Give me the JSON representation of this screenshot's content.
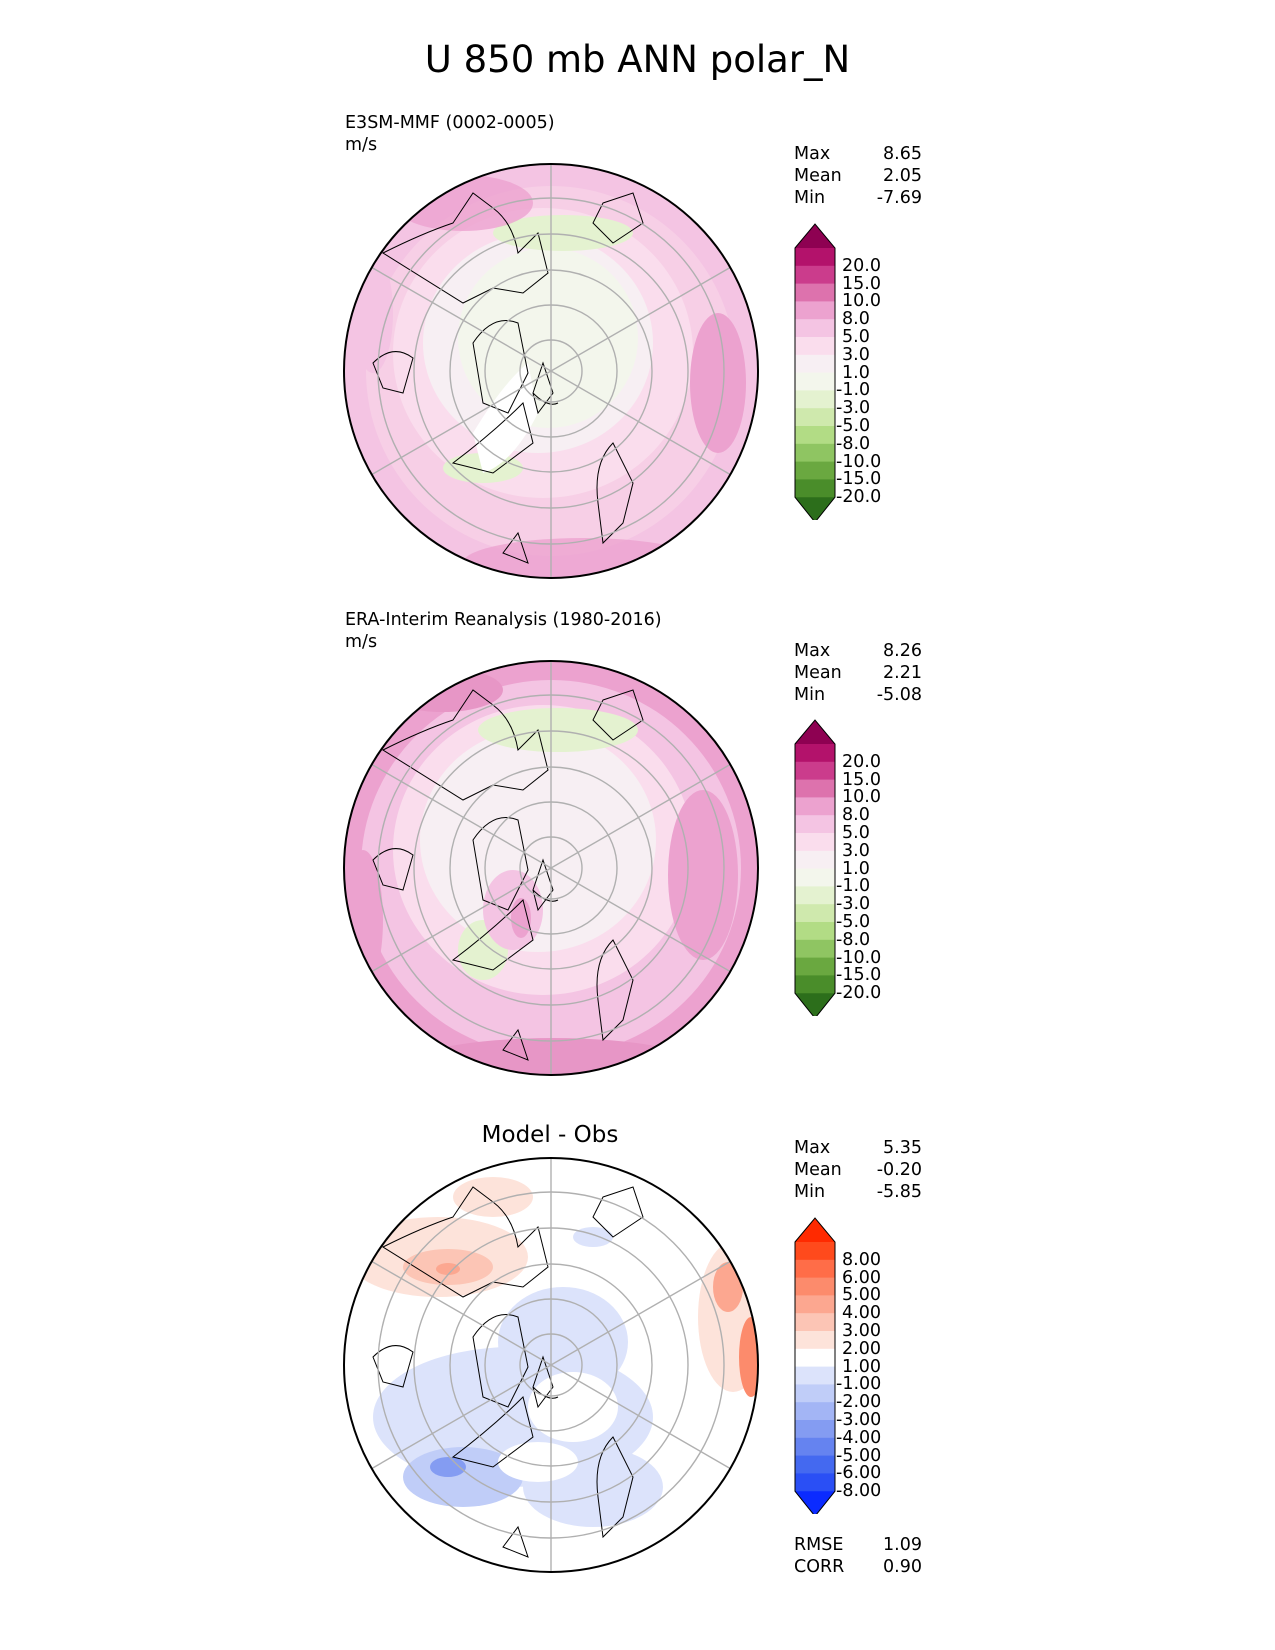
{
  "figure": {
    "title": "U 850 mb ANN polar_N"
  },
  "panels": [
    {
      "id": "test",
      "name": "E3SM-MMF (0002-0005)",
      "units": "m/s",
      "stats": [
        {
          "label": "Max",
          "value": "8.65"
        },
        {
          "label": "Mean",
          "value": "2.05"
        },
        {
          "label": "Min",
          "value": "-7.69"
        }
      ],
      "colorbar": {
        "labels": [
          "20.0",
          "15.0",
          "10.0",
          "8.0",
          "5.0",
          "3.0",
          "1.0",
          "-1.0",
          "-3.0",
          "-5.0",
          "-8.0",
          "-10.0",
          "-15.0",
          "-20.0"
        ],
        "colors": [
          "#8e0152",
          "#b3126b",
          "#cb3c8c",
          "#dd72ad",
          "#eca2cf",
          "#f4c4e3",
          "#fadded",
          "#f7eff3",
          "#f3f6ec",
          "#e4f2d0",
          "#cfe9ad",
          "#b2dc85",
          "#8fc562",
          "#6aa840",
          "#4a8d2a",
          "#2c6e1b"
        ]
      },
      "diagnostics": []
    },
    {
      "id": "ref",
      "name": "ERA-Interim Reanalysis (1980-2016)",
      "units": "m/s",
      "stats": [
        {
          "label": "Max",
          "value": "8.26"
        },
        {
          "label": "Mean",
          "value": "2.21"
        },
        {
          "label": "Min",
          "value": "-5.08"
        }
      ],
      "colorbar": {
        "labels": [
          "20.0",
          "15.0",
          "10.0",
          "8.0",
          "5.0",
          "3.0",
          "1.0",
          "-1.0",
          "-3.0",
          "-5.0",
          "-8.0",
          "-10.0",
          "-15.0",
          "-20.0"
        ],
        "colors": [
          "#8e0152",
          "#b3126b",
          "#cb3c8c",
          "#dd72ad",
          "#eca2cf",
          "#f4c4e3",
          "#fadded",
          "#f7eff3",
          "#f3f6ec",
          "#e4f2d0",
          "#cfe9ad",
          "#b2dc85",
          "#8fc562",
          "#6aa840",
          "#4a8d2a",
          "#2c6e1b"
        ]
      },
      "diagnostics": []
    },
    {
      "id": "diff",
      "name": "Model - Obs",
      "units": "",
      "stats": [
        {
          "label": "Max",
          "value": "5.35"
        },
        {
          "label": "Mean",
          "value": "-0.20"
        },
        {
          "label": "Min",
          "value": "-5.85"
        }
      ],
      "colorbar": {
        "labels": [
          "8.00",
          "6.00",
          "5.00",
          "4.00",
          "3.00",
          "2.00",
          "1.00",
          "-1.00",
          "-2.00",
          "-3.00",
          "-4.00",
          "-5.00",
          "-6.00",
          "-8.00"
        ],
        "colors": [
          "#ff2a00",
          "#ff4a1c",
          "#ff6d48",
          "#fc8b6c",
          "#fca790",
          "#fcc5b5",
          "#fde3da",
          "#ffffff",
          "#dce3fb",
          "#c0cdf8",
          "#a3b5f5",
          "#849cf2",
          "#6583f0",
          "#4469f0",
          "#2a4ff5",
          "#0b2bff"
        ]
      },
      "diagnostics": [
        {
          "label": "RMSE",
          "value": "1.09"
        },
        {
          "label": "CORR",
          "value": "0.90"
        }
      ]
    }
  ]
}
